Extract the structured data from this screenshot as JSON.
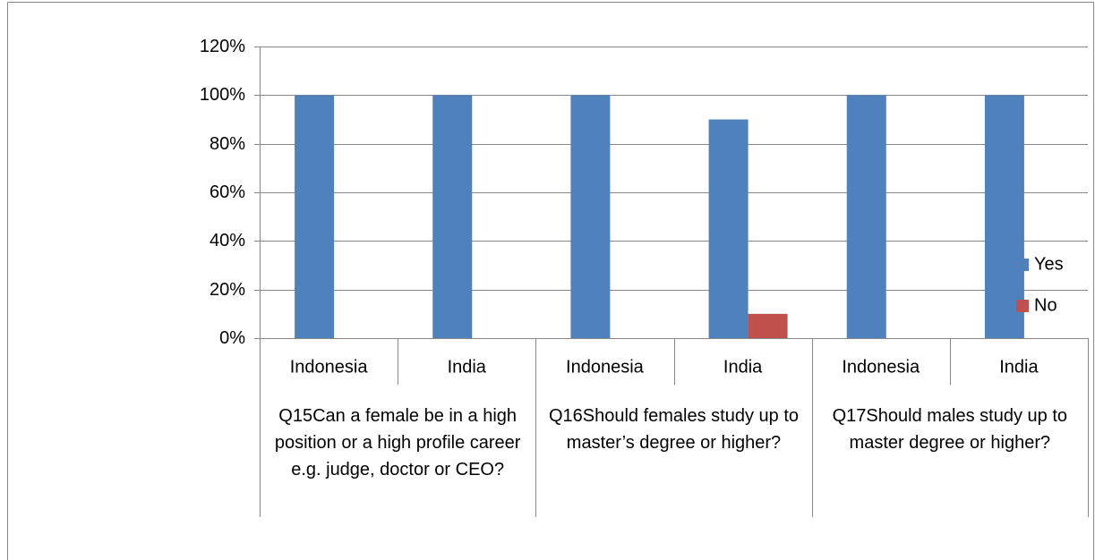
{
  "chart_data": {
    "type": "bar",
    "groups": [
      {
        "label": "Q15Can a female be in a high position or a high profile career e.g. judge, doctor or CEO?",
        "categories": [
          "Indonesia",
          "India"
        ]
      },
      {
        "label": "Q16Should females study up to master’s degree or higher?",
        "categories": [
          "Indonesia",
          "India"
        ]
      },
      {
        "label": "Q17Should males study up to master degree or higher?",
        "categories": [
          "Indonesia",
          "India"
        ]
      }
    ],
    "series": [
      {
        "name": "Yes",
        "color": "#4f81bd",
        "values": [
          100,
          100,
          100,
          90,
          100,
          100
        ]
      },
      {
        "name": "No",
        "color": "#c0504d",
        "values": [
          0,
          0,
          0,
          10,
          0,
          0
        ]
      }
    ],
    "ylim": [
      0,
      120
    ],
    "yticks": [
      {
        "value": 0,
        "label": "0%"
      },
      {
        "value": 20,
        "label": "20%"
      },
      {
        "value": 40,
        "label": "40%"
      },
      {
        "value": 60,
        "label": "60%"
      },
      {
        "value": 80,
        "label": "80%"
      },
      {
        "value": 100,
        "label": "100%"
      },
      {
        "value": 120,
        "label": "120%"
      }
    ],
    "grid": true,
    "legend": "right"
  }
}
